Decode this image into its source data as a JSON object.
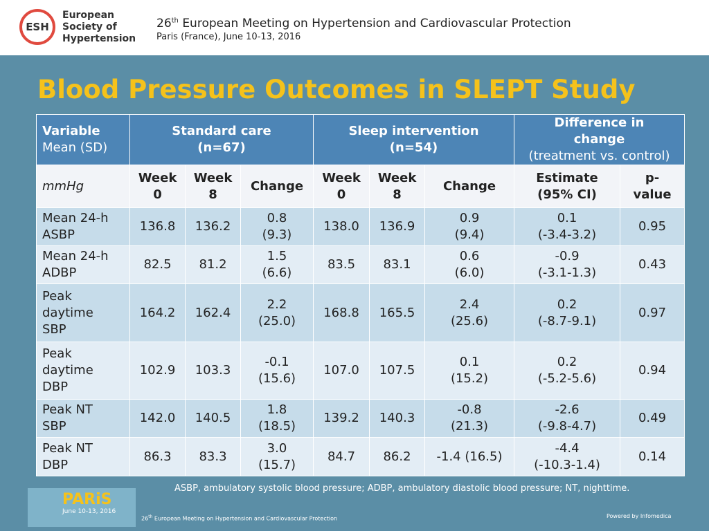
{
  "header": {
    "logo_abbr": "ESH",
    "logo_lines": [
      "European",
      "Society of",
      "Hypertension"
    ],
    "meeting_number": "26",
    "meeting_suffix": "th",
    "meeting_name": "European Meeting on Hypertension and Cardiovascular Protection",
    "location": "Paris (France), June 10-13, 2016"
  },
  "title": "Blood Pressure Outcomes in SLEPT Study",
  "table": {
    "head1": {
      "variable": "Variable",
      "variable_sub": "Mean (SD)",
      "standard": "Standard care\n(n=67)",
      "sleep": "Sleep intervention\n(n=54)",
      "difference": "Difference in\nchange",
      "difference_sub": "(treatment vs. control)"
    },
    "head2": [
      "mmHg",
      "Week\n0",
      "Week\n8",
      "Change",
      "Week\n0",
      "Week\n8",
      "Change",
      "Estimate\n(95% CI)",
      "p-\nvalue"
    ],
    "rows": [
      [
        "Mean 24-h\nASBP",
        "136.8",
        "136.2",
        "0.8\n(9.3)",
        "138.0",
        "136.9",
        "0.9\n(9.4)",
        "0.1\n(-3.4-3.2)",
        "0.95"
      ],
      [
        "Mean 24-h\nADBP",
        "82.5",
        "81.2",
        "1.5\n(6.6)",
        "83.5",
        "83.1",
        "0.6\n(6.0)",
        "-0.9\n(-3.1-1.3)",
        "0.43"
      ],
      [
        "Peak\ndaytime\nSBP",
        "164.2",
        "162.4",
        "2.2\n(25.0)",
        "168.8",
        "165.5",
        "2.4\n(25.6)",
        "0.2\n(-8.7-9.1)",
        "0.97"
      ],
      [
        "Peak\ndaytime\nDBP",
        "102.9",
        "103.3",
        "-0.1\n(15.6)",
        "107.0",
        "107.5",
        "0.1\n(15.2)",
        "0.2\n(-5.2-5.6)",
        "0.94"
      ],
      [
        "Peak NT\nSBP",
        "142.0",
        "140.5",
        "1.8\n(18.5)",
        "139.2",
        "140.3",
        "-0.8\n(21.3)",
        "-2.6\n(-9.8-4.7)",
        "0.49"
      ],
      [
        "Peak NT\nDBP",
        "86.3",
        "83.3",
        "3.0\n(15.7)",
        "84.7",
        "86.2",
        "-1.4 (16.5)",
        "-4.4\n(-10.3-1.4)",
        "0.14"
      ]
    ]
  },
  "footnote": "ASBP, ambulatory systolic blood pressure; ADBP, ambulatory diastolic blood pressure; NT, nighttime.",
  "footer": {
    "badge_title": "PARiS",
    "badge_date": "June 10-13, 2016",
    "meeting_number": "26",
    "meeting_suffix": "th",
    "meeting_name": "European Meeting on Hypertension and Cardiovascular Protection",
    "powered": "Powered by Infomedica"
  }
}
